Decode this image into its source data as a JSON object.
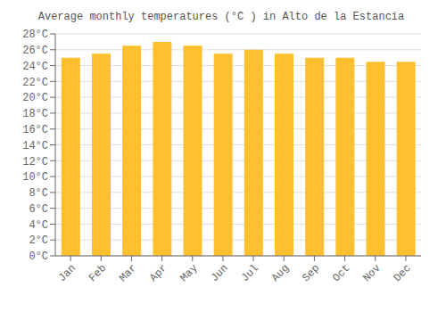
{
  "chart_data": {
    "type": "bar",
    "title": "Average monthly temperatures (°C ) in Alto de la Estancia",
    "categories": [
      "Jan",
      "Feb",
      "Mar",
      "Apr",
      "May",
      "Jun",
      "Jul",
      "Aug",
      "Sep",
      "Oct",
      "Nov",
      "Dec"
    ],
    "values": [
      25.0,
      25.5,
      26.5,
      27.0,
      26.5,
      25.5,
      26.0,
      25.5,
      25.0,
      25.0,
      24.5,
      24.5
    ],
    "color": "#FFC030",
    "ylim": [
      0,
      28
    ],
    "yticks": [
      {
        "value": 0,
        "label": "0°C"
      },
      {
        "value": 2,
        "label": "2°C"
      },
      {
        "value": 4,
        "label": "4°C"
      },
      {
        "value": 6,
        "label": "6°C"
      },
      {
        "value": 8,
        "label": "8°C"
      },
      {
        "value": 10,
        "label": "10°C"
      },
      {
        "value": 12,
        "label": "12°C"
      },
      {
        "value": 14,
        "label": "14°C"
      },
      {
        "value": 16,
        "label": "16°C"
      },
      {
        "value": 18,
        "label": "18°C"
      },
      {
        "value": 20,
        "label": "20°C"
      },
      {
        "value": 22,
        "label": "22°C"
      },
      {
        "value": 24,
        "label": "24°C"
      },
      {
        "value": 26,
        "label": "26°C"
      },
      {
        "value": 28,
        "label": "28°C"
      }
    ],
    "grid": true
  }
}
